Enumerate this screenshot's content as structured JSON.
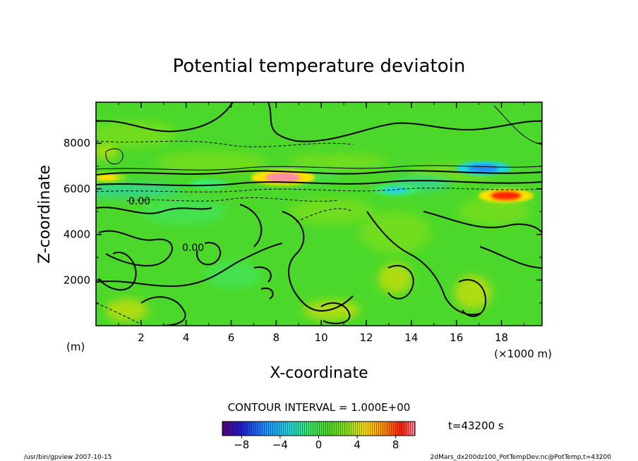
{
  "chart_data": {
    "type": "heatmap",
    "title": "Potential temperature deviatoin",
    "xlabel": "X-coordinate",
    "ylabel": "Z-coordinate",
    "x_unit": "(×1000 m)",
    "y_unit": "(m)",
    "xlim": [
      0,
      19.8
    ],
    "ylim": [
      0,
      9800
    ],
    "x_ticks": [
      "2",
      "4",
      "6",
      "8",
      "10",
      "12",
      "14",
      "16",
      "18"
    ],
    "y_ticks": [
      "2000",
      "4000",
      "6000",
      "8000"
    ],
    "contour_labels": [
      "0.00",
      "0.00"
    ],
    "contour_interval_text": "CONTOUR INTERVAL = 1.000E+00",
    "colorbar": {
      "range": [
        -10,
        10
      ],
      "ticks": [
        "−8",
        "−4",
        "0",
        "4",
        "8"
      ],
      "colors": [
        "#5a007a",
        "#2020d0",
        "#1f8fff",
        "#22d6e0",
        "#3ee86a",
        "#4cd82a",
        "#8ee21a",
        "#ffe000",
        "#ff8c00",
        "#ff2000",
        "#ff8aa8"
      ]
    },
    "time_label": "t=43200  s",
    "features": [
      {
        "x": 8.3,
        "z": 6500,
        "value": 9
      },
      {
        "x": 13.3,
        "z": 5950,
        "value": -5
      },
      {
        "x": 17.2,
        "z": 6900,
        "value": -7
      },
      {
        "x": 18.2,
        "z": 5700,
        "value": 7
      },
      {
        "x": 0.5,
        "z": 6500,
        "value": 3
      },
      {
        "x": 5.0,
        "z": 6200,
        "value": -3
      }
    ]
  },
  "footer": {
    "left": "/usr/bin/gpview   2007-10-15",
    "right": "2dMars_dx200dz100_PotTempDev.nc@PotTemp,t=43200"
  }
}
